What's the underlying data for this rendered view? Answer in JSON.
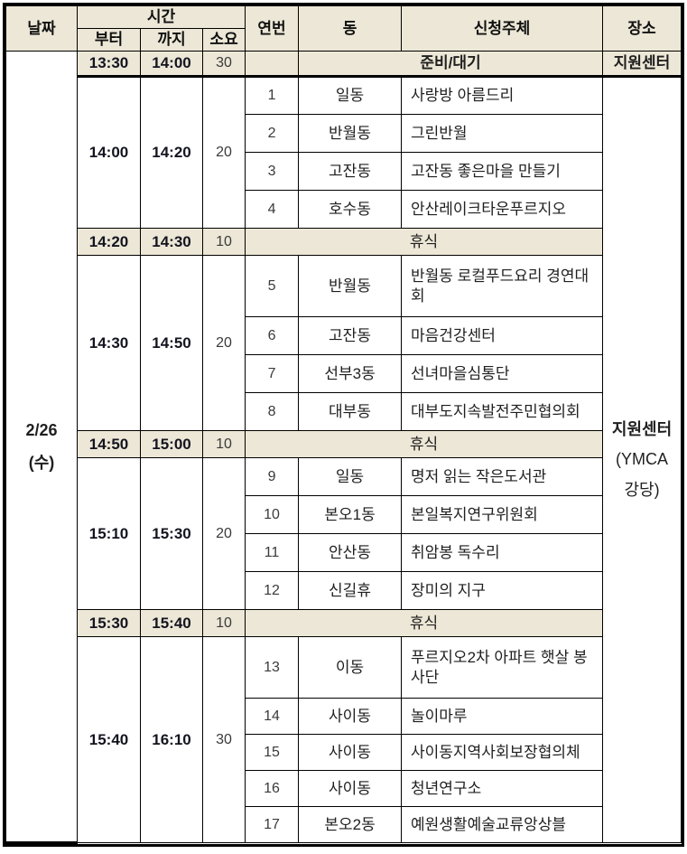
{
  "colors": {
    "band_bg": "#ece7d6",
    "border": "#000000",
    "text": "#1f1f1f"
  },
  "header": {
    "date": "날짜",
    "time": "시간",
    "from": "부터",
    "to": "까지",
    "duration": "소요",
    "no": "연번",
    "dong": "동",
    "applicant": "신청주체",
    "place": "장소"
  },
  "date_cell": {
    "line1": "2/26",
    "line2": "(수)"
  },
  "place_cell": {
    "line1": "지원센터",
    "line2": "(YMCA",
    "line3": "강당)"
  },
  "prep_row": {
    "from": "13:30",
    "to": "14:00",
    "duration": "30",
    "label": "준비/대기",
    "place": "지원센터"
  },
  "breaks": [
    {
      "from": "14:20",
      "to": "14:30",
      "duration": "10",
      "label": "휴식"
    },
    {
      "from": "14:50",
      "to": "15:00",
      "duration": "10",
      "label": "휴식"
    },
    {
      "from": "15:30",
      "to": "15:40",
      "duration": "10",
      "label": "휴식"
    }
  ],
  "blocks": [
    {
      "from": "14:00",
      "to": "14:20",
      "duration": "20",
      "entries": [
        {
          "no": "1",
          "dong": "일동",
          "applicant": "사랑방 아름드리"
        },
        {
          "no": "2",
          "dong": "반월동",
          "applicant": "그린반월"
        },
        {
          "no": "3",
          "dong": "고잔동",
          "applicant": "고잔동 좋은마을 만들기"
        },
        {
          "no": "4",
          "dong": "호수동",
          "applicant": "안산레이크타운푸르지오"
        }
      ]
    },
    {
      "from": "14:30",
      "to": "14:50",
      "duration": "20",
      "entries": [
        {
          "no": "5",
          "dong": "반월동",
          "applicant": "반월동 로컬푸드요리 경연대회"
        },
        {
          "no": "6",
          "dong": "고잔동",
          "applicant": "마음건강센터"
        },
        {
          "no": "7",
          "dong": "선부3동",
          "applicant": "선녀마을심통단"
        },
        {
          "no": "8",
          "dong": "대부동",
          "applicant": "대부도지속발전주민협의회"
        }
      ]
    },
    {
      "from": "15:10",
      "to": "15:30",
      "duration": "20",
      "entries": [
        {
          "no": "9",
          "dong": "일동",
          "applicant": "명저 읽는 작은도서관"
        },
        {
          "no": "10",
          "dong": "본오1동",
          "applicant": "본일복지연구위원회"
        },
        {
          "no": "11",
          "dong": "안산동",
          "applicant": "취암봉 독수리"
        },
        {
          "no": "12",
          "dong": "신길휴",
          "applicant": "장미의 지구"
        }
      ]
    },
    {
      "from": "15:40",
      "to": "16:10",
      "duration": "30",
      "entries": [
        {
          "no": "13",
          "dong": "이동",
          "applicant": "푸르지오2차 아파트 햇살 봉사단"
        },
        {
          "no": "14",
          "dong": "사이동",
          "applicant": "놀이마루"
        },
        {
          "no": "15",
          "dong": "사이동",
          "applicant": "사이동지역사회보장협의체"
        },
        {
          "no": "16",
          "dong": "사이동",
          "applicant": "청년연구소"
        },
        {
          "no": "17",
          "dong": "본오2동",
          "applicant": "예원생활예술교류앙상블"
        }
      ]
    }
  ]
}
